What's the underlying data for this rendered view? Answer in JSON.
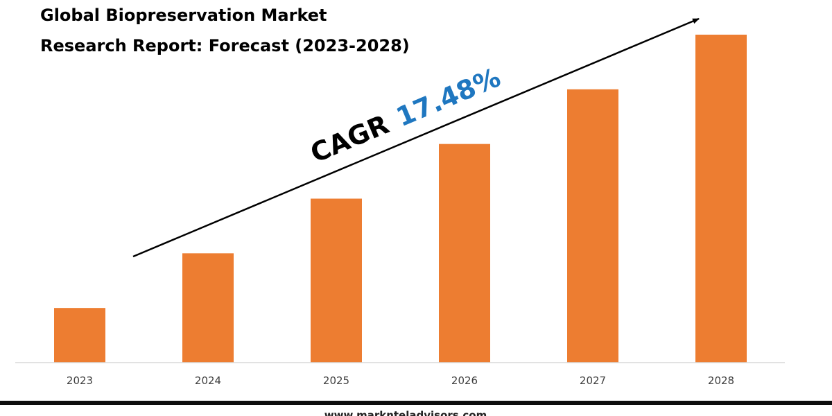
{
  "chart_data": {
    "type": "bar",
    "title_lines": [
      "Global Biopreservation Market",
      "Research Report: Forecast (2023-2028)"
    ],
    "categories": [
      "2023",
      "2024",
      "2025",
      "2026",
      "2027",
      "2028"
    ],
    "values": [
      1.0,
      2.0,
      3.0,
      4.0,
      5.0,
      6.0
    ],
    "ylim": [
      0,
      6.0
    ],
    "grid": false,
    "legend": "none",
    "bar_color": "#ED7D31",
    "annotation": {
      "label": "CAGR",
      "value": "17.48%",
      "value_color": "#1F77C0"
    }
  },
  "footer": {
    "url": "www.marknteladvisors.com"
  },
  "colors": {
    "footer_band": "#0E0E0E",
    "axis": "#D9D9D9",
    "arrow": "#000000"
  }
}
